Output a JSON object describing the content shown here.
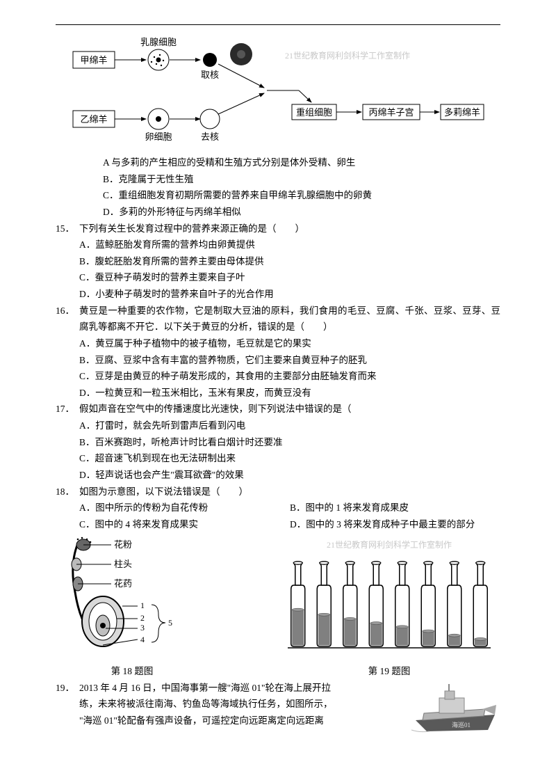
{
  "diagram1": {
    "labels": {
      "jia": "甲绵羊",
      "yi": "乙绵羊",
      "ruxian": "乳腺细胞",
      "quhe": "取核",
      "luanxibao": "卵细胞",
      "quhe2": "去核",
      "chongzu": "重组细胞",
      "bing_uterus": "丙绵羊子宫",
      "duoli": "多莉绵羊",
      "watermark": "21世纪教育网利剑科学工作室制作"
    },
    "colors": {
      "line": "#000000",
      "fill": "#ffffff",
      "circle_dark": "#000000",
      "donut_dark": "#333333"
    }
  },
  "pre_options": {
    "a": "A 与多莉的产生相应的受精和生殖方式分别是体外受精、卵生",
    "b": "B．克隆属于无性生殖",
    "c": "C．重组细胞发育初期所需要的营养来自甲绵羊乳腺细胞中的卵黄",
    "d": "D．多莉的外形特征与丙绵羊相似"
  },
  "q15": {
    "num": "15．",
    "head": "下列有关生长发育过程中的营养来源正确的是（　　）",
    "a": "A．蓝鲸胚胎发育所需的营养均由卵黄提供",
    "b": "B．腹蛇胚胎发育所需的营养主要由母体提供",
    "c": "C．蚕豆种子萌发时的营养主要来自子叶",
    "d": "D．小麦种子萌发时的营养来自叶子的光合作用"
  },
  "q16": {
    "num": "16．",
    "head": "黄豆是一种重要的农作物，它是制取大豆油的原料，我们食用的毛豆、豆腐、千张、豆浆、豆芽、豆腐乳等都离不开它．以下关于黄豆的分析，错误的是（　　）",
    "a": "A．黄豆属于种子植物中的被子植物，毛豆就是它的果实",
    "b": "B．豆腐、豆浆中含有丰富的营养物质，它们主要来自黄豆种子的胚乳",
    "c": "C．豆芽是由黄豆的种子萌发形成的，其食用的主要部分由胚轴发育而来",
    "d": "D．一粒黄豆和一粒玉米相比，玉米有果皮，而黄豆没有"
  },
  "q17": {
    "num": "17．",
    "head": "假如声音在空气中的传播速度比光速快，则下列说法中错误的是（　　",
    "a": "A．打雷时，就会先听到雷声后看到闪电",
    "b": "B．百米赛跑时，听枪声计时比看白烟计时还要准",
    "c": "C．超音速飞机到现在也无法研制出来",
    "d": "D．轻声说话也会产生\"震耳欲聋\"的效果"
  },
  "q18": {
    "num": "18．",
    "head": "如图为示意图，以下说法错误是（　　）",
    "a": "A．图中所示的传粉为自花传粉",
    "b": "B．图中的 1 将来发育成果皮",
    "c": "C．图中的 4 将来发育成果实",
    "d": "D．图中的 3 将来发育成种子中最主要的部分"
  },
  "figs": {
    "f18": {
      "caption": "第 18 题图",
      "labels": {
        "huafen": "花粉",
        "zhutou": "柱头",
        "huayao": "花药",
        "n1": "1",
        "n2": "2",
        "n3": "3",
        "n4": "4",
        "n5": "5"
      },
      "colors": {
        "outline": "#000000",
        "body_fill": "#cccccc",
        "inner_fill": "#888888"
      }
    },
    "f19": {
      "caption": "第 19 题图",
      "watermark": "21世纪教育网利剑科学工作室制作",
      "bottle_count": 8,
      "water_levels": [
        0.6,
        0.52,
        0.45,
        0.38,
        0.32,
        0.25,
        0.18,
        0.12
      ],
      "colors": {
        "outline": "#000000",
        "water": "#808080",
        "bg": "#ffffff"
      }
    }
  },
  "q19": {
    "num": "19．",
    "head_l1": "2013 年 4 月 16 日，中国海事第一艘\"海巡 01\"轮在海上展开拉",
    "head_l2": "练，未来将被派往南海、钓鱼岛等海域执行任务，如图所示，",
    "head_l3": "\"海巡 01\"轮配备有强声设备，可遥控定向远距离定向远距离"
  },
  "ship": {
    "label": "海巡01",
    "colors": {
      "hull": "#595959",
      "deck": "#b5b5b5",
      "text": "#666666"
    }
  }
}
